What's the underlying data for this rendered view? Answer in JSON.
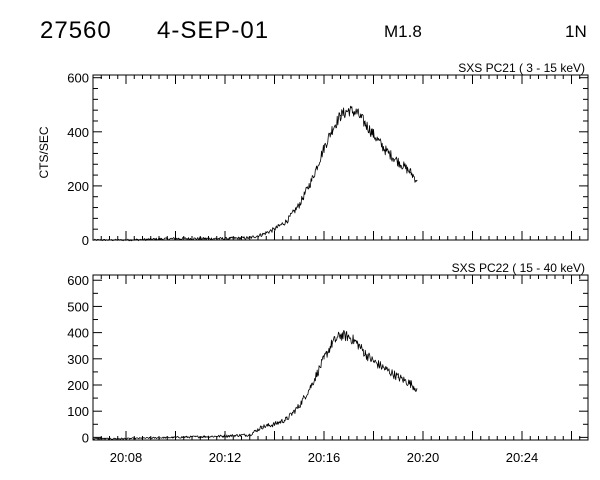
{
  "header": {
    "event_id": "27560",
    "date": "4-SEP-01",
    "flare_class": "M1.8",
    "location": "1N"
  },
  "chart_data": [
    {
      "type": "line",
      "title": "SXS PC21  (  3 - 15 keV)",
      "ylabel": "CTS/SEC",
      "xlabel": "",
      "x_unit": "UT time (HH:MM)",
      "xlim": [
        "20:06:40",
        "20:26:40"
      ],
      "ylim": [
        0,
        610
      ],
      "y_ticks": [
        0,
        200,
        400,
        600
      ],
      "x_tick_labels": [],
      "grid": false,
      "series": [
        {
          "x": [
            "20:06:40",
            "20:08:00",
            "20:10:00",
            "20:12:00",
            "20:13:00",
            "20:13:30",
            "20:14:00",
            "20:14:30",
            "20:15:00",
            "20:15:30",
            "20:16:00",
            "20:16:20",
            "20:16:40",
            "20:17:00",
            "20:17:20",
            "20:17:40",
            "20:18:00",
            "20:18:30",
            "20:19:00",
            "20:19:30",
            "20:19:45"
          ],
          "values": [
            0,
            0,
            5,
            5,
            8,
            20,
            40,
            70,
            130,
            220,
            340,
            410,
            460,
            480,
            470,
            430,
            390,
            330,
            290,
            250,
            220
          ]
        }
      ]
    },
    {
      "type": "line",
      "title": "SXS PC22  ( 15 - 40 keV)",
      "ylabel": "",
      "xlabel": "",
      "x_unit": "UT time (HH:MM)",
      "xlim": [
        "20:06:40",
        "20:26:40"
      ],
      "ylim": [
        -10,
        620
      ],
      "y_ticks": [
        0,
        100,
        200,
        300,
        400,
        500,
        600
      ],
      "x_tick_labels": [
        "20:08",
        "20:12",
        "20:16",
        "20:20",
        "20:24"
      ],
      "grid": false,
      "series": [
        {
          "x": [
            "20:06:40",
            "20:08:00",
            "20:10:00",
            "20:12:00",
            "20:13:00",
            "20:13:30",
            "20:14:00",
            "20:14:30",
            "20:15:00",
            "20:15:30",
            "20:16:00",
            "20:16:20",
            "20:16:40",
            "20:17:00",
            "20:17:20",
            "20:17:40",
            "20:18:00",
            "20:18:30",
            "20:19:00",
            "20:19:30",
            "20:19:45"
          ],
          "values": [
            -5,
            -5,
            0,
            5,
            10,
            40,
            50,
            70,
            120,
            200,
            300,
            360,
            390,
            385,
            360,
            320,
            290,
            260,
            230,
            205,
            185
          ]
        }
      ]
    }
  ]
}
